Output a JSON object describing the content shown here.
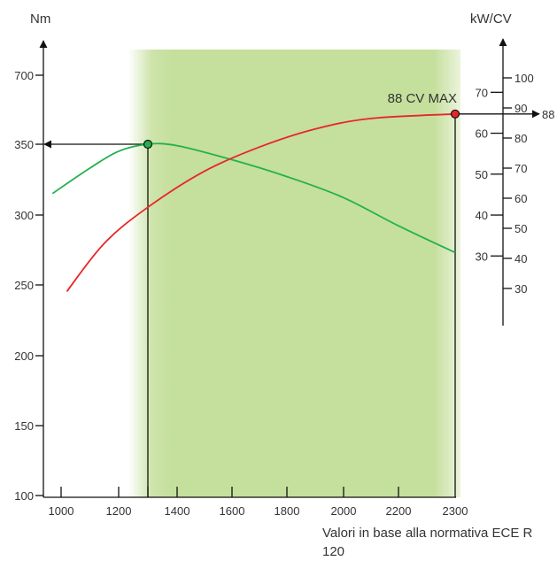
{
  "chart_data": {
    "type": "line",
    "left_axis": {
      "unit": "Nm",
      "ticks": [
        "700",
        "350",
        "300",
        "250",
        "200",
        "150",
        "100"
      ]
    },
    "x_axis": {
      "ticks": [
        "1000",
        "1200",
        "1400",
        "1600",
        "1800",
        "2000",
        "2200",
        "2300"
      ]
    },
    "right_axis_kw": {
      "unit_label": "kW/CV",
      "ticks": [
        70,
        60,
        50,
        40,
        30
      ]
    },
    "right_axis_cv": {
      "ticks": [
        100,
        90,
        80,
        70,
        60,
        50,
        40,
        30
      ]
    },
    "band": {
      "from": 1250,
      "to": 2300,
      "color": "#c5df9c"
    },
    "series": [
      {
        "kind": "torque",
        "color": "#23b14d",
        "points": [
          [
            970,
            315
          ],
          [
            1100,
            333
          ],
          [
            1200,
            345
          ],
          [
            1300,
            350
          ],
          [
            1400,
            349
          ],
          [
            1600,
            339
          ],
          [
            1800,
            327
          ],
          [
            2000,
            312
          ],
          [
            2200,
            292
          ],
          [
            2300,
            273
          ]
        ]
      },
      {
        "kind": "power",
        "color": "#e8262a",
        "points": [
          [
            1020,
            29
          ],
          [
            1150,
            45
          ],
          [
            1300,
            57
          ],
          [
            1500,
            69
          ],
          [
            1700,
            77
          ],
          [
            1900,
            83
          ],
          [
            2100,
            86.5
          ],
          [
            2300,
            88
          ]
        ]
      }
    ],
    "torque_peak": {
      "rpm": 1300,
      "value": 350,
      "label": "350"
    },
    "power_peak": {
      "rpm": 2300,
      "value": 88,
      "label": "88 CV MAX",
      "axis_label": "88"
    }
  },
  "footnote": "Valori in base alla normativa ECE R 120"
}
